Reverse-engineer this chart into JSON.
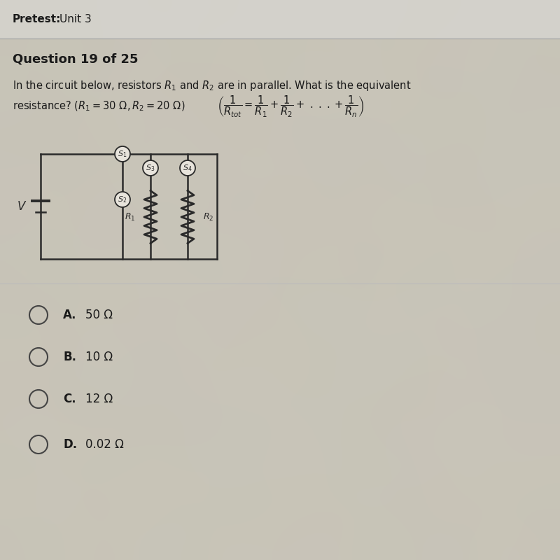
{
  "header_bold": "Pretest:",
  "header_normal": "Unit 3",
  "question_label": "Question 19 of 25",
  "question_text_line1": "In the circuit below, resistors $R_1$ and $R_2$ are in parallel. What is the equivalent",
  "question_text_line2_part1": "resistance? $(R_1 = 30\\ \\Omega, R_2 = 20\\ \\Omega)$",
  "question_text_line2_formula": "$\\left(\\dfrac{1}{R_{tot}} = \\dfrac{1}{R_1} + \\dfrac{1}{R_2} +\\ .\\ .\\ .+\\dfrac{1}{R_n}\\right)$",
  "choices": [
    {
      "label": "A.",
      "text": "50 Ω"
    },
    {
      "label": "B.",
      "text": "10 Ω"
    },
    {
      "label": "C.",
      "text": "12 Ω"
    },
    {
      "label": "D.",
      "text": "0.02 Ω"
    }
  ],
  "bg_color_header": "#c8c8c5",
  "bg_color_main": "#c8c2b8",
  "bg_color_lower": "#c4bfb8",
  "text_color": "#1a1a1a",
  "circuit_color": "#2a2a2a"
}
